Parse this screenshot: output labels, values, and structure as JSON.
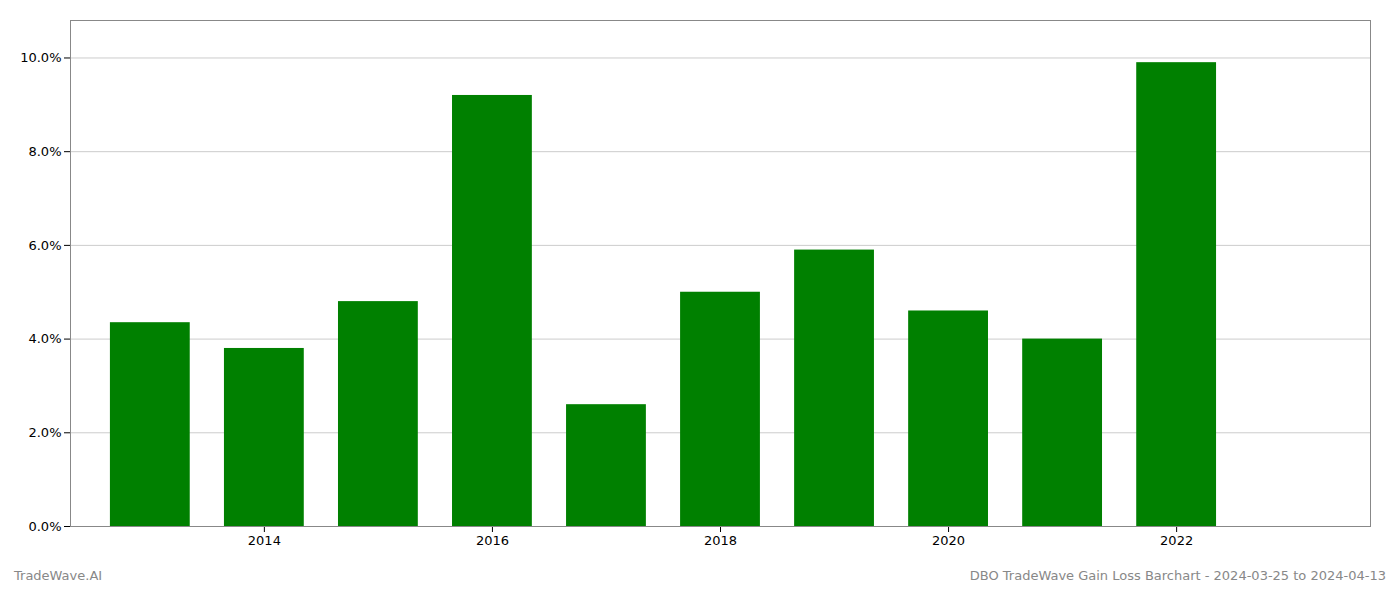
{
  "chart_data": {
    "type": "bar",
    "x": [
      2013,
      2014,
      2015,
      2016,
      2017,
      2018,
      2019,
      2020,
      2021,
      2022
    ],
    "values": [
      0.0435,
      0.038,
      0.048,
      0.092,
      0.026,
      0.05,
      0.059,
      0.046,
      0.04,
      0.099
    ],
    "color": "#008000",
    "xlim": [
      2012.3,
      2023.7
    ],
    "xticks": [
      2014,
      2016,
      2018,
      2020,
      2022
    ],
    "ylim": [
      0,
      0.108
    ],
    "yticks": [
      {
        "value": 0.0,
        "label": "0.0%"
      },
      {
        "value": 0.02,
        "label": "2.0%"
      },
      {
        "value": 0.04,
        "label": "4.0%"
      },
      {
        "value": 0.06,
        "label": "6.0%"
      },
      {
        "value": 0.08,
        "label": "8.0%"
      },
      {
        "value": 0.1,
        "label": "10.0%"
      }
    ],
    "grid": true,
    "annotations": [
      "TradeWave.AI",
      "DBO TradeWave Gain Loss Barchart - 2024-03-25 to 2024-04-13"
    ]
  }
}
